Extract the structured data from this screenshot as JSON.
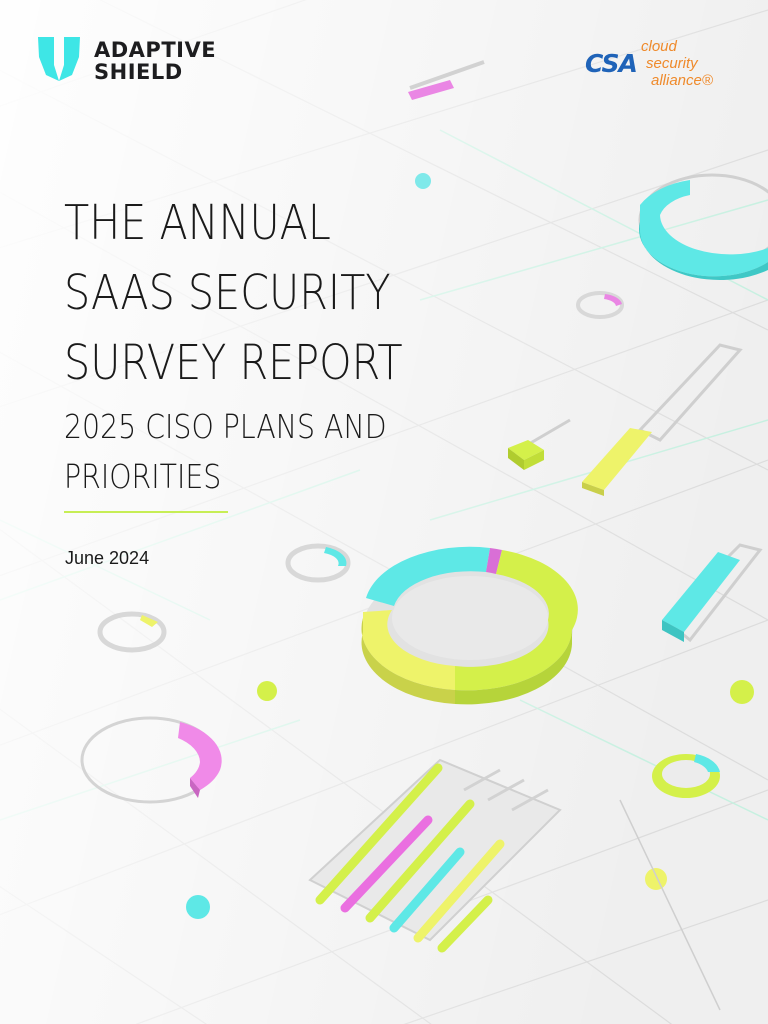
{
  "brand": {
    "adaptive_shield": {
      "line1": "ADAPTIVE",
      "line2": "SHIELD",
      "icon": "shield-icon",
      "color": "#3ee6e6"
    },
    "csa": {
      "letters": "CSA",
      "word1": "cloud",
      "word2": "security",
      "word3": "alliance®",
      "color_primary": "#1f63b8",
      "color_secondary": "#ef8a2b"
    }
  },
  "cover": {
    "title_lines": [
      "THE ANNUAL",
      "SAAS SECURITY",
      "SURVEY REPORT"
    ],
    "subtitle_lines": [
      "2025 CISO PLANS AND",
      "PRIORITIES"
    ],
    "date": "June 2024"
  },
  "colors": {
    "cyan": "#5ee8e6",
    "lime": "#d4f04a",
    "yellow": "#eef36a",
    "pink": "#ea86e4",
    "accent_rule": "#c7ee55"
  }
}
